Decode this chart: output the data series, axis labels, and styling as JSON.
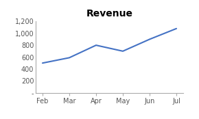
{
  "title": "Revenue",
  "categories": [
    "Feb",
    "Mar",
    "Apr",
    "May",
    "Jun",
    "Jul"
  ],
  "values": [
    500,
    590,
    800,
    700,
    900,
    1080
  ],
  "line_color": "#4472C4",
  "line_width": 1.5,
  "background_color": "#ffffff",
  "ylim": [
    0,
    1200
  ],
  "yticks": [
    0,
    200,
    400,
    600,
    800,
    1000,
    1200
  ],
  "title_fontsize": 10,
  "tick_fontsize": 7,
  "spine_color": "#AAAAAA",
  "tick_color": "#AAAAAA"
}
